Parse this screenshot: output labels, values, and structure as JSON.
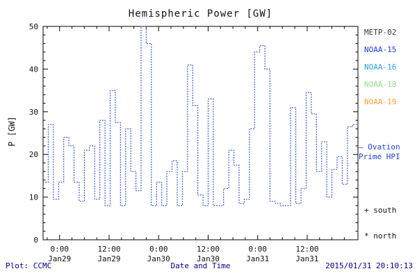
{
  "title": "Hemispheric Power [GW]",
  "y_axis_label": "P [GW]",
  "x_axis_label": "Date and Time",
  "footer": {
    "left": "Plot: CCMC",
    "right": "2015/01/31 20:10:13"
  },
  "legend": {
    "satellites": [
      {
        "label": "METP-02",
        "color": "#3a3a3a"
      },
      {
        "label": "NOAA-15",
        "color": "#2142d6"
      },
      {
        "label": "NOAA-16",
        "color": "#2e9fe6"
      },
      {
        "label": "NOAA-18",
        "color": "#8fe08f"
      },
      {
        "label": "NOAA-19",
        "color": "#f5a23c"
      }
    ],
    "line": {
      "label": "— Ovation\nPrime HPI",
      "color": "#2142d6"
    },
    "markers": [
      {
        "symbol_label": "+ south"
      },
      {
        "symbol_label": "* north"
      }
    ]
  },
  "chart_data": {
    "type": "line",
    "step": true,
    "line_style": "dotted",
    "line_color": "#3457d5",
    "title": "Hemispheric Power [GW]",
    "xlabel": "Date and Time",
    "ylabel": "P [GW]",
    "ylim": [
      0,
      50
    ],
    "yticks": [
      0,
      10,
      20,
      30,
      40,
      50
    ],
    "y_minor_step": 2,
    "x_minor_step_hours": 3,
    "xlim_hours": [
      -4,
      72.3
    ],
    "x_start_hours": -4,
    "step_hours": 1.25,
    "x_major_ticks": [
      {
        "hour": 0,
        "time": "0:00",
        "date": "Jan29"
      },
      {
        "hour": 12,
        "time": "12:00",
        "date": "Jan29"
      },
      {
        "hour": 24,
        "time": "0:00",
        "date": "Jan30"
      },
      {
        "hour": 36,
        "time": "12:00",
        "date": "Jan30"
      },
      {
        "hour": 48,
        "time": "0:00",
        "date": "Jan31"
      },
      {
        "hour": 60,
        "time": "12:00",
        "date": "Jan31"
      }
    ],
    "values_gw": [
      13.5,
      27,
      9.5,
      13.5,
      24,
      22,
      13.5,
      9,
      21,
      22,
      9.5,
      28,
      8,
      35,
      27.5,
      8,
      26,
      16,
      11.5,
      50,
      46,
      8,
      13.5,
      8,
      16,
      18.5,
      8,
      16,
      41,
      31.5,
      10.5,
      8,
      33,
      8,
      8,
      12,
      21,
      17.5,
      8.5,
      9.5,
      26,
      44,
      45.5,
      40,
      9,
      8.5,
      8,
      8,
      31,
      8.5,
      12,
      34.5,
      29.5,
      16,
      23,
      10,
      16.5,
      19.5,
      13,
      26.5,
      27
    ]
  }
}
